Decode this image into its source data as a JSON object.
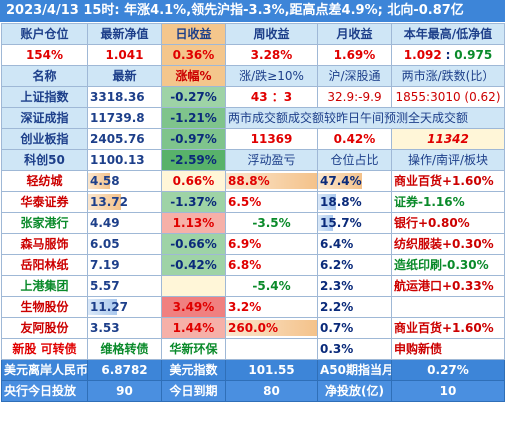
{
  "title": "2023/4/13  15时: 年涨4.1%,领先沪指-3.3%,距高点差4.9%; 北向-0.87亿",
  "account_header": {
    "c1": "账户仓位",
    "c2": "最新净值",
    "c3": "日收益",
    "c4": "周收益",
    "c5": "月收益",
    "c6": "本年最高/低净值"
  },
  "account_values": {
    "position": "154%",
    "nav": "1.041",
    "day": "0.36%",
    "week": "3.28%",
    "month": "1.69%",
    "year_high": "1.092",
    "year_sep": ":",
    "year_low": "0.975"
  },
  "index_header": {
    "c1": "名称",
    "c2": "最新",
    "c3": "涨幅%",
    "c4": "涨/跌≥10%",
    "c5": "沪/深股通",
    "c6": "两市涨/跌数(比）"
  },
  "indices": [
    {
      "name": "上证指数",
      "price": "3318.36",
      "chg": "-0.27%",
      "extra1": "43 ：3",
      "extra2": "32.9:-9.9",
      "extra3": "1855:3010 (0.62)"
    },
    {
      "name": "深证成指",
      "price": "11739.8",
      "chg": "-1.21%",
      "extra_span": "两市成交额成交额较昨日午间预测全天成交额"
    },
    {
      "name": "创业板指",
      "price": "2405.76",
      "chg": "-0.97%",
      "extra1": "11369",
      "extra2": "0.42%",
      "extra3": "11342"
    },
    {
      "name": "科创50",
      "price": "1100.13",
      "chg": "-2.59%",
      "h1": "浮动盈亏",
      "h2": "仓位占比",
      "h3": "操作/南评/板块"
    }
  ],
  "stocks": [
    {
      "name": "轻纺城",
      "price": "4.58",
      "chg": "0.66%",
      "pnl": "88.8%",
      "pct": "47.4%",
      "note": "商业百货+1.60%",
      "pnl_fill": 1.0,
      "pct_fill": 0.55
    },
    {
      "name": "华泰证券",
      "price": "13.72",
      "chg": "-1.37%",
      "pnl": "6.5%",
      "pct": "18.8%",
      "note": "证券-1.16%",
      "price_fill": 0.45
    },
    {
      "name": "张家港行",
      "price": "4.49",
      "chg": "1.13%",
      "pnl": "-3.5%",
      "pct": "15.7%",
      "note": "银行+0.80%"
    },
    {
      "name": "森马服饰",
      "price": "6.05",
      "chg": "-0.66%",
      "pnl": "6.9%",
      "pct": "6.4%",
      "note": "纺织服装+0.30%"
    },
    {
      "name": "岳阳林纸",
      "price": "7.19",
      "chg": "-0.42%",
      "pnl": "6.8%",
      "pct": "6.2%",
      "note": "造纸印刷-0.30%"
    },
    {
      "name": "上港集团",
      "price": "5.57",
      "chg": "",
      "pnl": "-5.4%",
      "pct": "2.3%",
      "note": "航运港口+0.33%"
    },
    {
      "name": "生物股份",
      "price": "11.27",
      "chg": "3.49%",
      "pnl": "3.2%",
      "pct": "2.2%",
      "note": ""
    },
    {
      "name": "友阿股份",
      "price": "3.53",
      "chg": "1.44%",
      "pnl": "260.0%",
      "pct": "0.7%",
      "note": "商业百货+1.60%"
    }
  ],
  "new_row": {
    "name": "新股 可转债",
    "c2": "维格转债",
    "c3": "华新环保",
    "pct": "0.3%",
    "note": "申购新债"
  },
  "fx_row": {
    "l1": "美元离岸人民币",
    "v1": "6.8782",
    "l2": "美元指数",
    "v2": "101.55",
    "l3": "A50期指当月",
    "v3": "0.27%"
  },
  "pboc_row": {
    "l1": "央行今日投放",
    "v1": "90",
    "l2": "今日到期",
    "v2": "80",
    "l3": "净投放(亿)",
    "v3": "10"
  }
}
